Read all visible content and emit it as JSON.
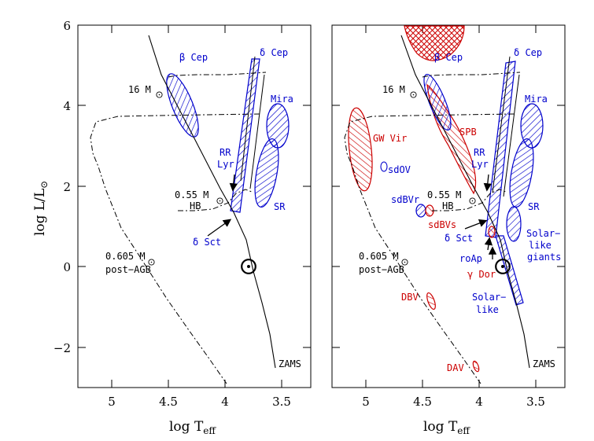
{
  "axes": {
    "x_label_main": "log T",
    "x_label_sub": "eff",
    "y_label_main": "log L/L",
    "y_label_sub": "⊙",
    "x_ticks": [
      "5",
      "4.5",
      "4",
      "3.5"
    ],
    "y_ticks": [
      "6",
      "4",
      "2",
      "0",
      "−2"
    ]
  },
  "colors": {
    "blue": "#0000cc",
    "red": "#cc0000",
    "black": "#000000"
  },
  "left_panel": {
    "beta_cep": "β Cep",
    "delta_cep": "δ Cep",
    "mass16": "16 M",
    "mira": "Mira",
    "rr_lyr_1": "RR",
    "rr_lyr_2": "Lyr",
    "mass055": "0.55 M",
    "hb": "HB",
    "sr": "SR",
    "delta_sct": "δ Sct",
    "mass0605": "0.605 M",
    "post_agb": "post−AGB",
    "zams": "ZAMS"
  },
  "right_panel": {
    "beta_cep": "β Cep",
    "delta_cep": "δ Cep",
    "mass16": "16 M",
    "mira": "Mira",
    "spb": "SPB",
    "gw_vir": "GW Vir",
    "rr_lyr_1": "RR",
    "rr_lyr_2": "Lyr",
    "sdov": "sdOV",
    "sdbvr": "sdBVr",
    "mass055": "0.55 M",
    "hb": "HB",
    "sr": "SR",
    "sdbvs": "sdBVs",
    "delta_sct": "δ Sct",
    "solar_like_giants_1": "Solar−",
    "solar_like_giants_2": "like",
    "solar_like_giants_3": "giants",
    "mass0605": "0.605 M",
    "post_agb": "post−AGB",
    "roap": "roAp",
    "gamma_dor": "γ Dor",
    "solar_like_1": "Solar−",
    "solar_like_2": "like",
    "dbv": "DBV",
    "dav": "DAV",
    "zams": "ZAMS"
  }
}
